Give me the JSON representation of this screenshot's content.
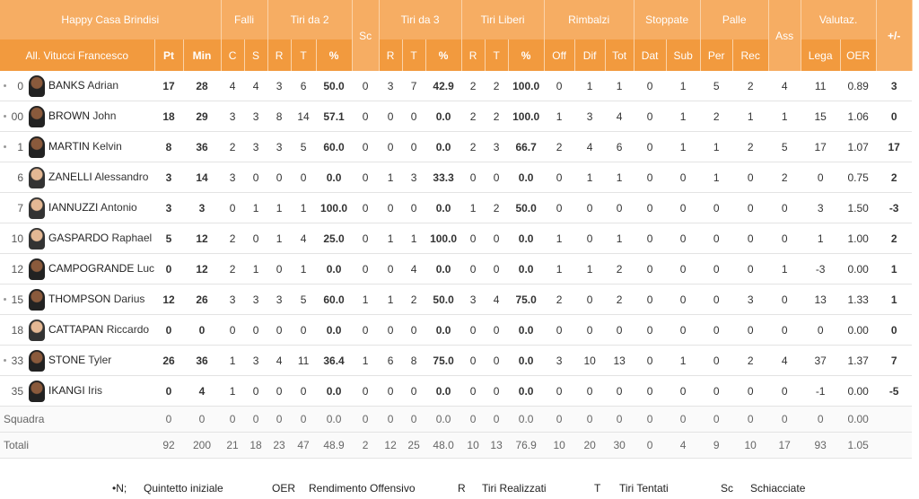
{
  "header": {
    "team": "Happy Casa Brindisi",
    "coach": "All. Vitucci Francesco",
    "groups": [
      "Falli",
      "Tiri da 2",
      "Sc",
      "Tiri da 3",
      "Tiri Liberi",
      "Rimbalzi",
      "Stoppate",
      "Palle",
      "Ass",
      "Valutaz.",
      "+/-"
    ],
    "columns": [
      "Pt",
      "Min",
      "C",
      "S",
      "R",
      "T",
      "%",
      "R",
      "T",
      "%",
      "R",
      "T",
      "%",
      "Off",
      "Dif",
      "Tot",
      "Dat",
      "Sub",
      "Per",
      "Rec",
      "Lega",
      "OER"
    ]
  },
  "players": [
    {
      "number": "0",
      "starter": true,
      "surname": "BANKS",
      "first": "Adrian",
      "stats": [
        "17",
        "28",
        "4",
        "4",
        "3",
        "6",
        "50.0",
        "0",
        "3",
        "7",
        "42.9",
        "2",
        "2",
        "100.0",
        "0",
        "1",
        "1",
        "0",
        "1",
        "5",
        "2",
        "4",
        "11",
        "0.89",
        "3"
      ]
    },
    {
      "number": "00",
      "starter": true,
      "surname": "BROWN",
      "first": "John",
      "stats": [
        "18",
        "29",
        "3",
        "3",
        "8",
        "14",
        "57.1",
        "0",
        "0",
        "0",
        "0.0",
        "2",
        "2",
        "100.0",
        "1",
        "3",
        "4",
        "0",
        "1",
        "2",
        "1",
        "1",
        "15",
        "1.06",
        "0"
      ]
    },
    {
      "number": "1",
      "starter": true,
      "surname": "MARTIN",
      "first": "Kelvin",
      "stats": [
        "8",
        "36",
        "2",
        "3",
        "3",
        "5",
        "60.0",
        "0",
        "0",
        "0",
        "0.0",
        "2",
        "3",
        "66.7",
        "2",
        "4",
        "6",
        "0",
        "1",
        "1",
        "2",
        "5",
        "17",
        "1.07",
        "17"
      ]
    },
    {
      "number": "6",
      "starter": false,
      "surname": "ZANELLI",
      "first": "Alessandro",
      "stats": [
        "3",
        "14",
        "3",
        "0",
        "0",
        "0",
        "0.0",
        "0",
        "1",
        "3",
        "33.3",
        "0",
        "0",
        "0.0",
        "0",
        "1",
        "1",
        "0",
        "0",
        "1",
        "0",
        "2",
        "0",
        "0.75",
        "2"
      ]
    },
    {
      "number": "7",
      "starter": false,
      "surname": "IANNUZZI",
      "first": "Antonio",
      "stats": [
        "3",
        "3",
        "0",
        "1",
        "1",
        "1",
        "100.0",
        "0",
        "0",
        "0",
        "0.0",
        "1",
        "2",
        "50.0",
        "0",
        "0",
        "0",
        "0",
        "0",
        "0",
        "0",
        "0",
        "3",
        "1.50",
        "-3"
      ]
    },
    {
      "number": "10",
      "starter": false,
      "surname": "GASPARDO",
      "first": "Raphael",
      "stats": [
        "5",
        "12",
        "2",
        "0",
        "1",
        "4",
        "25.0",
        "0",
        "1",
        "1",
        "100.0",
        "0",
        "0",
        "0.0",
        "1",
        "0",
        "1",
        "0",
        "0",
        "0",
        "0",
        "0",
        "1",
        "1.00",
        "2"
      ]
    },
    {
      "number": "12",
      "starter": false,
      "surname": "CAMPOGRANDE",
      "first": "Luca",
      "stats": [
        "0",
        "12",
        "2",
        "1",
        "0",
        "1",
        "0.0",
        "0",
        "0",
        "4",
        "0.0",
        "0",
        "0",
        "0.0",
        "1",
        "1",
        "2",
        "0",
        "0",
        "0",
        "0",
        "1",
        "-3",
        "0.00",
        "1"
      ]
    },
    {
      "number": "15",
      "starter": true,
      "surname": "THOMPSON",
      "first": "Darius",
      "stats": [
        "12",
        "26",
        "3",
        "3",
        "3",
        "5",
        "60.0",
        "1",
        "1",
        "2",
        "50.0",
        "3",
        "4",
        "75.0",
        "2",
        "0",
        "2",
        "0",
        "0",
        "0",
        "3",
        "0",
        "13",
        "1.33",
        "1"
      ]
    },
    {
      "number": "18",
      "starter": false,
      "surname": "CATTAPAN",
      "first": "Riccardo",
      "stats": [
        "0",
        "0",
        "0",
        "0",
        "0",
        "0",
        "0.0",
        "0",
        "0",
        "0",
        "0.0",
        "0",
        "0",
        "0.0",
        "0",
        "0",
        "0",
        "0",
        "0",
        "0",
        "0",
        "0",
        "0",
        "0.00",
        "0"
      ]
    },
    {
      "number": "33",
      "starter": true,
      "surname": "STONE",
      "first": "Tyler",
      "stats": [
        "26",
        "36",
        "1",
        "3",
        "4",
        "11",
        "36.4",
        "1",
        "6",
        "8",
        "75.0",
        "0",
        "0",
        "0.0",
        "3",
        "10",
        "13",
        "0",
        "1",
        "0",
        "2",
        "4",
        "37",
        "1.37",
        "7"
      ]
    },
    {
      "number": "35",
      "starter": false,
      "surname": "IKANGI",
      "first": "Iris",
      "stats": [
        "0",
        "4",
        "1",
        "0",
        "0",
        "0",
        "0.0",
        "0",
        "0",
        "0",
        "0.0",
        "0",
        "0",
        "0.0",
        "0",
        "0",
        "0",
        "0",
        "0",
        "0",
        "0",
        "0",
        "-1",
        "0.00",
        "-5"
      ]
    }
  ],
  "squadra": {
    "label": "Squadra",
    "stats": [
      "0",
      "0",
      "0",
      "0",
      "0",
      "0",
      "0.0",
      "0",
      "0",
      "0",
      "0.0",
      "0",
      "0",
      "0.0",
      "0",
      "0",
      "0",
      "0",
      "0",
      "0",
      "0",
      "0",
      "0",
      "0.00"
    ]
  },
  "totali": {
    "label": "Totali",
    "stats": [
      "92",
      "200",
      "21",
      "18",
      "23",
      "47",
      "48.9",
      "2",
      "12",
      "25",
      "48.0",
      "10",
      "13",
      "76.9",
      "10",
      "20",
      "30",
      "0",
      "4",
      "9",
      "10",
      "17",
      "93",
      "1.05"
    ]
  },
  "legend": [
    {
      "key": "•N;",
      "text": "Quintetto iniziale"
    },
    {
      "key": "OER",
      "text": "Rendimento Offensivo"
    },
    {
      "key": "R",
      "text": "Tiri Realizzati"
    },
    {
      "key": "T",
      "text": "Tiri Tentati"
    },
    {
      "key": "Sc",
      "text": "Schiacciate"
    }
  ]
}
